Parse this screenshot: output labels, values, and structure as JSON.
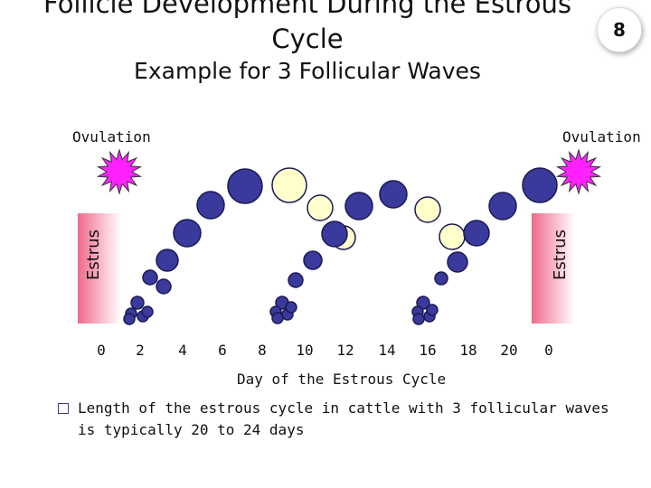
{
  "title_line1": "Follicle Development During the Estrous",
  "title_line2": "Cycle",
  "subtitle": "Example for 3 Follicular Waves",
  "slide_number": "8",
  "ovulation_left": "Ovulation",
  "ovulation_right": "Ovulation",
  "estrus_label": "Estrus",
  "x_ticks": [
    "0",
    "2",
    "4",
    "6",
    "8",
    "10",
    "12",
    "14",
    "16",
    "18",
    "20",
    "0"
  ],
  "x_axis_label": "Day of the Estrous Cycle",
  "bullet_text": "Length of the estrous cycle in cattle with 3 follicular waves is typically 20 to 24 days",
  "colors": {
    "dominant_follicle": "#3a3a9c",
    "regressing_follicle": "#ffffcc",
    "estrus_bar": "#f07090",
    "ovulation_star": "#ff22ff"
  }
}
